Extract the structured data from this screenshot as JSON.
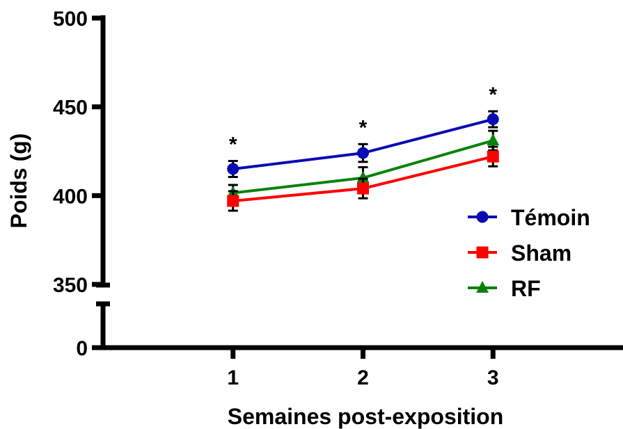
{
  "chart_data": {
    "type": "line",
    "xlabel": "Semaines post-exposition",
    "ylabel": "Poids (g)",
    "x": [
      1,
      2,
      3
    ],
    "x_tick_labels": [
      "1",
      "2",
      "3"
    ],
    "xlim": [
      0,
      4
    ],
    "ylim_upper": [
      350,
      500
    ],
    "ylim_lower": [
      0,
      0
    ],
    "axis_break": true,
    "y_tick_labels": [
      "500",
      "450",
      "400",
      "350",
      "0"
    ],
    "series": [
      {
        "name": "Témoin",
        "marker": "circle",
        "color": "#0a0ab4",
        "values": [
          415,
          424,
          443
        ],
        "errors": [
          4.5,
          5,
          4.5
        ]
      },
      {
        "name": "Sham",
        "marker": "square",
        "color": "#ff0000",
        "values": [
          397,
          404,
          422
        ],
        "errors": [
          5.5,
          5.5,
          5.5
        ]
      },
      {
        "name": "RF",
        "marker": "triangle",
        "color": "#0a820a",
        "values": [
          401.5,
          410,
          431
        ],
        "errors": [
          4.5,
          6,
          5.5
        ]
      }
    ],
    "annotations": [
      {
        "x": 1,
        "text": "*"
      },
      {
        "x": 2,
        "text": "*"
      },
      {
        "x": 3,
        "text": "*"
      }
    ],
    "legend": "right",
    "grid": false
  }
}
